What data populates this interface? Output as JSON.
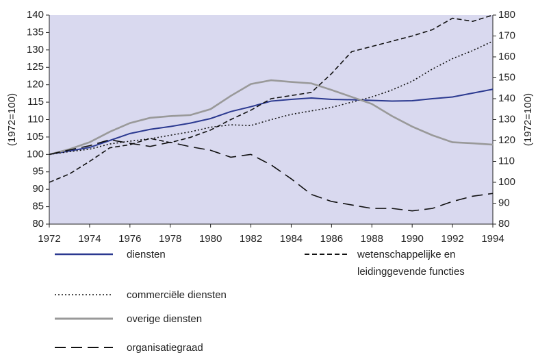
{
  "chart_data": {
    "type": "line",
    "ylabel": "(1972=100)",
    "y2label": "(1972=100)",
    "x": [
      1972,
      1973,
      1974,
      1975,
      1976,
      1977,
      1978,
      1979,
      1980,
      1981,
      1982,
      1983,
      1984,
      1985,
      1986,
      1987,
      1988,
      1989,
      1990,
      1991,
      1992,
      1993,
      1994
    ],
    "xlim": [
      1972,
      1994
    ],
    "xticks": [
      1972,
      1974,
      1976,
      1978,
      1980,
      1982,
      1984,
      1986,
      1988,
      1990,
      1992,
      1994
    ],
    "ylim": [
      80,
      140
    ],
    "yticks": [
      80,
      85,
      90,
      95,
      100,
      105,
      110,
      115,
      120,
      125,
      130,
      135,
      140
    ],
    "y2lim": [
      80,
      180
    ],
    "y2ticks": [
      80,
      90,
      100,
      110,
      120,
      130,
      140,
      150,
      160,
      170,
      180
    ],
    "background": "#d9d9ef",
    "series": [
      {
        "name": "diensten",
        "color": "#2b3990",
        "dash": "solid",
        "width": 2,
        "values": [
          100,
          101,
          102,
          104,
          106,
          107.2,
          108,
          109,
          110.3,
          112.3,
          113.7,
          115.3,
          115.8,
          116.2,
          115.8,
          115.7,
          115.5,
          115.3,
          115.4,
          116,
          116.5,
          117.6,
          118.7
        ]
      },
      {
        "name": "commerciële diensten",
        "color": "#111111",
        "dash": "dotted",
        "width": 1.6,
        "values": [
          100,
          100.8,
          101.5,
          103,
          103.8,
          104.5,
          105.5,
          106.5,
          107.8,
          108.5,
          108.3,
          110,
          111.5,
          112.5,
          113.5,
          115,
          116.5,
          118.5,
          121,
          124.5,
          127.5,
          129.8,
          132.5
        ]
      },
      {
        "name": "overige diensten",
        "color": "#999999",
        "dash": "solid",
        "width": 2.6,
        "values": [
          100,
          101.5,
          103.5,
          106.5,
          109,
          110.5,
          111,
          111.3,
          113,
          116.8,
          120.2,
          121.3,
          120.8,
          120.4,
          118.5,
          116.5,
          114.5,
          111,
          108,
          105.5,
          103.5,
          103.2,
          102.8
        ]
      },
      {
        "name": "organisatiegraad",
        "color": "#111111",
        "dash": "long-dash",
        "width": 1.6,
        "values": [
          100,
          101.3,
          102.5,
          104.2,
          103.2,
          102.3,
          103.5,
          102.2,
          101.2,
          99.2,
          100,
          97,
          93,
          88.5,
          86.5,
          85.5,
          84.5,
          84.5,
          83.8,
          84.5,
          86.5,
          88,
          88.8
        ]
      },
      {
        "name": "wetenschappelijke en leidinggevende functies",
        "color": "#111111",
        "dash": "short-dash",
        "width": 1.6,
        "axis": "y2",
        "values": [
          100,
          104,
          110,
          116.5,
          118,
          121,
          119,
          121.5,
          125,
          130,
          134.5,
          140,
          141.5,
          143,
          152,
          162.5,
          165,
          167.5,
          170,
          173,
          178.5,
          177,
          180
        ]
      }
    ]
  }
}
